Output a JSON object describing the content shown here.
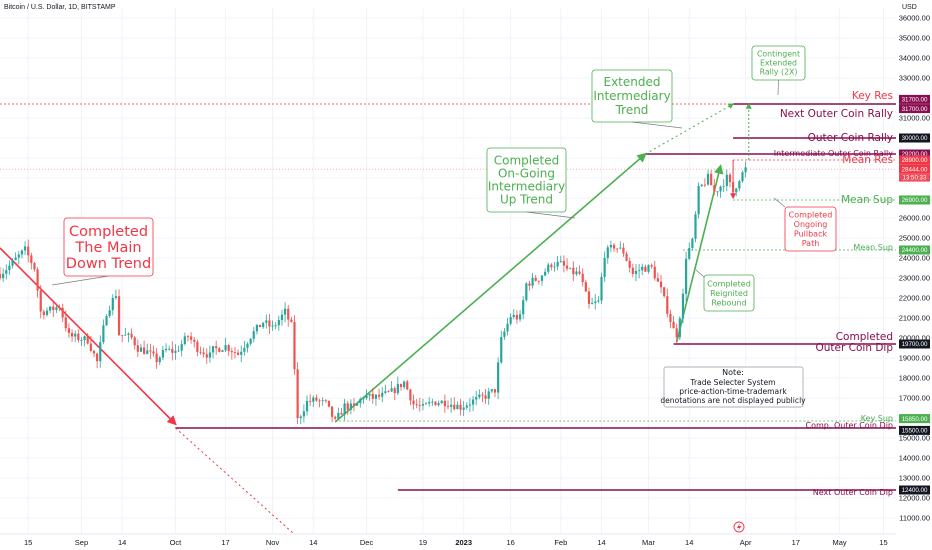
{
  "header": {
    "symbol": "Bitcoin / U.S. Dollar, 1D, BITSTAMP",
    "currency": "USD"
  },
  "chart_data": {
    "type": "candlestick",
    "ylim": [
      10000,
      36000
    ],
    "y_ticks": [
      11000,
      12000,
      13000,
      14000,
      15000,
      16000,
      17000,
      18000,
      19000,
      20000,
      21000,
      22000,
      23000,
      24000,
      25000,
      26000,
      27000,
      28000,
      29000,
      30000,
      31000,
      32000,
      33000,
      34000,
      35000,
      36000
    ],
    "x_ticks": [
      {
        "label": "15",
        "date": "2022-08-15"
      },
      {
        "label": "Sep",
        "date": "2022-09-01"
      },
      {
        "label": "14",
        "date": "2022-09-14"
      },
      {
        "label": "Oct",
        "date": "2022-10-01"
      },
      {
        "label": "17",
        "date": "2022-10-17"
      },
      {
        "label": "Nov",
        "date": "2022-11-01"
      },
      {
        "label": "14",
        "date": "2022-11-14"
      },
      {
        "label": "Dec",
        "date": "2022-12-01"
      },
      {
        "label": "19",
        "date": "2022-12-19"
      },
      {
        "label": "2023",
        "date": "2023-01-01"
      },
      {
        "label": "16",
        "date": "2023-01-16"
      },
      {
        "label": "Feb",
        "date": "2023-02-01"
      },
      {
        "label": "14",
        "date": "2023-02-14"
      },
      {
        "label": "Mar",
        "date": "2023-03-01"
      },
      {
        "label": "14",
        "date": "2023-03-14"
      },
      {
        "label": "Apr",
        "date": "2023-04-01"
      },
      {
        "label": "17",
        "date": "2023-04-17"
      },
      {
        "label": "May",
        "date": "2023-05-01"
      },
      {
        "label": "15",
        "date": "2023-05-15"
      }
    ],
    "x_range": [
      "2022-08-06",
      "2023-05-19"
    ],
    "closes": [
      [
        "2022-08-06",
        23200
      ],
      [
        "2022-08-09",
        23600
      ],
      [
        "2022-08-12",
        24100
      ],
      [
        "2022-08-14",
        24400
      ],
      [
        "2022-08-17",
        23500
      ],
      [
        "2022-08-19",
        21300
      ],
      [
        "2022-08-22",
        21400
      ],
      [
        "2022-08-25",
        21600
      ],
      [
        "2022-08-28",
        20100
      ],
      [
        "2022-08-31",
        20000
      ],
      [
        "2022-09-03",
        19900
      ],
      [
        "2022-09-06",
        18800
      ],
      [
        "2022-09-09",
        21300
      ],
      [
        "2022-09-12",
        22200
      ],
      [
        "2022-09-13",
        20200
      ],
      [
        "2022-09-17",
        20000
      ],
      [
        "2022-09-19",
        19500
      ],
      [
        "2022-09-22",
        19300
      ],
      [
        "2022-09-25",
        18900
      ],
      [
        "2022-09-28",
        19400
      ],
      [
        "2022-10-01",
        19300
      ],
      [
        "2022-10-05",
        20100
      ],
      [
        "2022-10-08",
        19500
      ],
      [
        "2022-10-12",
        19100
      ],
      [
        "2022-10-13",
        19400
      ],
      [
        "2022-10-17",
        19600
      ],
      [
        "2022-10-21",
        19200
      ],
      [
        "2022-10-25",
        20100
      ],
      [
        "2022-10-29",
        20800
      ],
      [
        "2022-11-01",
        20500
      ],
      [
        "2022-11-05",
        21300
      ],
      [
        "2022-11-07",
        20600
      ],
      [
        "2022-11-08",
        18500
      ],
      [
        "2022-11-09",
        15900
      ],
      [
        "2022-11-12",
        16800
      ],
      [
        "2022-11-15",
        16900
      ],
      [
        "2022-11-18",
        16700
      ],
      [
        "2022-11-21",
        15800
      ],
      [
        "2022-11-24",
        16600
      ],
      [
        "2022-11-27",
        16500
      ],
      [
        "2022-11-30",
        17100
      ],
      [
        "2022-12-03",
        17000
      ],
      [
        "2022-12-06",
        17100
      ],
      [
        "2022-12-09",
        17300
      ],
      [
        "2022-12-13",
        17800
      ],
      [
        "2022-12-16",
        16700
      ],
      [
        "2022-12-19",
        16500
      ],
      [
        "2022-12-22",
        16800
      ],
      [
        "2022-12-26",
        16800
      ],
      [
        "2022-12-31",
        16550
      ],
      [
        "2023-01-04",
        16850
      ],
      [
        "2023-01-08",
        17100
      ],
      [
        "2023-01-11",
        17400
      ],
      [
        "2023-01-13",
        19900
      ],
      [
        "2023-01-16",
        21100
      ],
      [
        "2023-01-19",
        21000
      ],
      [
        "2023-01-21",
        22700
      ],
      [
        "2023-01-25",
        23000
      ],
      [
        "2023-01-29",
        23700
      ],
      [
        "2023-02-01",
        23700
      ],
      [
        "2023-02-04",
        23300
      ],
      [
        "2023-02-07",
        23200
      ],
      [
        "2023-02-10",
        21600
      ],
      [
        "2023-02-13",
        21800
      ],
      [
        "2023-02-15",
        24200
      ],
      [
        "2023-02-18",
        24600
      ],
      [
        "2023-02-21",
        24300
      ],
      [
        "2023-02-24",
        23200
      ],
      [
        "2023-02-27",
        23500
      ],
      [
        "2023-03-02",
        23500
      ],
      [
        "2023-03-05",
        22400
      ],
      [
        "2023-03-09",
        20400
      ],
      [
        "2023-03-10",
        20200
      ],
      [
        "2023-03-12",
        22100
      ],
      [
        "2023-03-13",
        24100
      ],
      [
        "2023-03-15",
        24800
      ],
      [
        "2023-03-17",
        27400
      ],
      [
        "2023-03-20",
        28000
      ],
      [
        "2023-03-22",
        27300
      ],
      [
        "2023-03-24",
        27600
      ],
      [
        "2023-03-26",
        28000
      ],
      [
        "2023-03-28",
        27300
      ],
      [
        "2023-03-30",
        28000
      ],
      [
        "2023-04-01",
        28444
      ]
    ],
    "levels": [
      {
        "name": "Key Res",
        "value": 31700,
        "color": "#880e4f",
        "tag": "31700.00",
        "start": "2023-03-28"
      },
      {
        "name": "Next Outer Coin Rally",
        "value": 31700,
        "color": "#880e4f",
        "tag": "31700.00"
      },
      {
        "name": "Outer Coin Rally",
        "value": 30000,
        "color": "#880e4f",
        "tag": "30000.00",
        "start": "2023-03-28"
      },
      {
        "name": "Intermediate Outer Coin Rally",
        "value": 29200,
        "color": "#880e4f",
        "tag": "29200.00",
        "start": "2023-02-28"
      },
      {
        "name": "Mean Res",
        "value": 28900,
        "color": "#f23645",
        "tag": "28900.00",
        "start": "2023-03-28"
      },
      {
        "name": "Mean Sup",
        "value": 26900,
        "color": "#4caf50",
        "tag": "26900.00",
        "start": "2023-03-28"
      },
      {
        "name": "Mean Sup",
        "value": 24400,
        "color": "#4caf50",
        "tag": "24400.00",
        "start": "2023-03-12"
      },
      {
        "name": "Completed Outer Coin Dip",
        "value": 19700,
        "color": "#880e4f",
        "tag": "19700.00",
        "start": "2023-03-09"
      },
      {
        "name": "Key Sup",
        "value": 15850,
        "color": "#4caf50",
        "tag": "15850.00",
        "start": "2022-11-21"
      },
      {
        "name": "Comp. Outer Coin Dip",
        "value": 15500,
        "color": "#880e4f",
        "tag": "15500.00",
        "start": "2022-10-01"
      },
      {
        "name": "Next Outer Coin Dip",
        "value": 12400,
        "color": "#880e4f",
        "tag": "12400.00",
        "start": "2022-12-11"
      }
    ],
    "price_tags": [
      {
        "value": 28444,
        "label": "28444.00",
        "sub": "13:50:33",
        "color": "#f23645"
      }
    ],
    "annotations": {
      "main_down_trend": "Completed\nThe Main\nDown Trend",
      "ongoing_up_trend": "Completed\nOn-Going\nIntermediary\nUp Trend",
      "extended_trend": "Extended\nIntermediary\nTrend",
      "contingent_rally": "Contingent\nExtended\nRally (2X)",
      "pullback": "Completed\nOngoing\nPullback\nPath",
      "reignited_rebound": "Completed\nReignited\nRebound",
      "note_title": "Note:",
      "note_body": "Trade Selecter System\nprice-action-time-trademark\ndenotations are not displayed publicly"
    },
    "colors": {
      "up": "#26a69a",
      "down": "#ef5350",
      "maroon": "#880e4f",
      "green": "#4caf50",
      "red": "#f23645"
    }
  }
}
